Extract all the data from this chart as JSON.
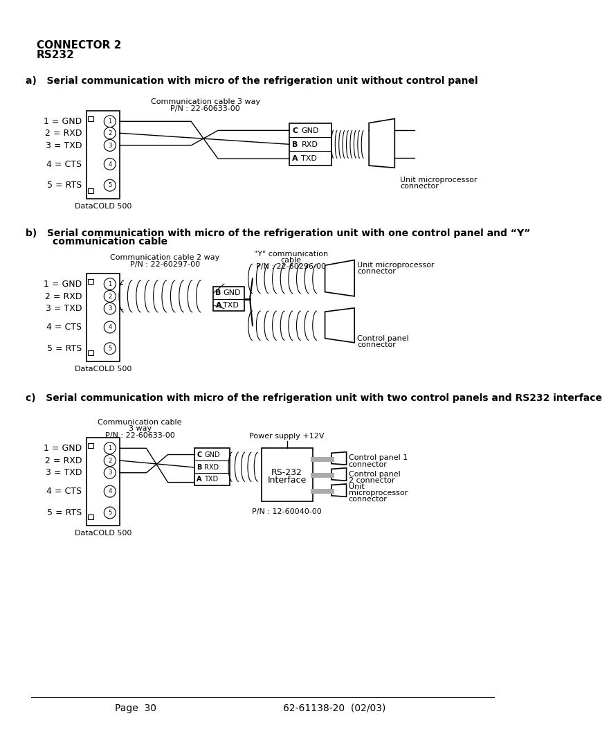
{
  "title1": "CONNECTOR 2",
  "title2": "RS232",
  "section_a_title": "a)   Serial communication with micro of the refrigeration unit without control panel",
  "section_b_line1": "b)   Serial communication with micro of the refrigeration unit with one control panel and “Y”",
  "section_b_line2": "        communication cable",
  "section_c_title": "c)   Serial communication with micro of the refrigeration unit with two control panels and RS232 interface",
  "footer_left": "Page  30",
  "footer_right": "62-61138-20  (02/03)",
  "bg_color": "#ffffff",
  "text_color": "#000000",
  "line_color": "#000000"
}
